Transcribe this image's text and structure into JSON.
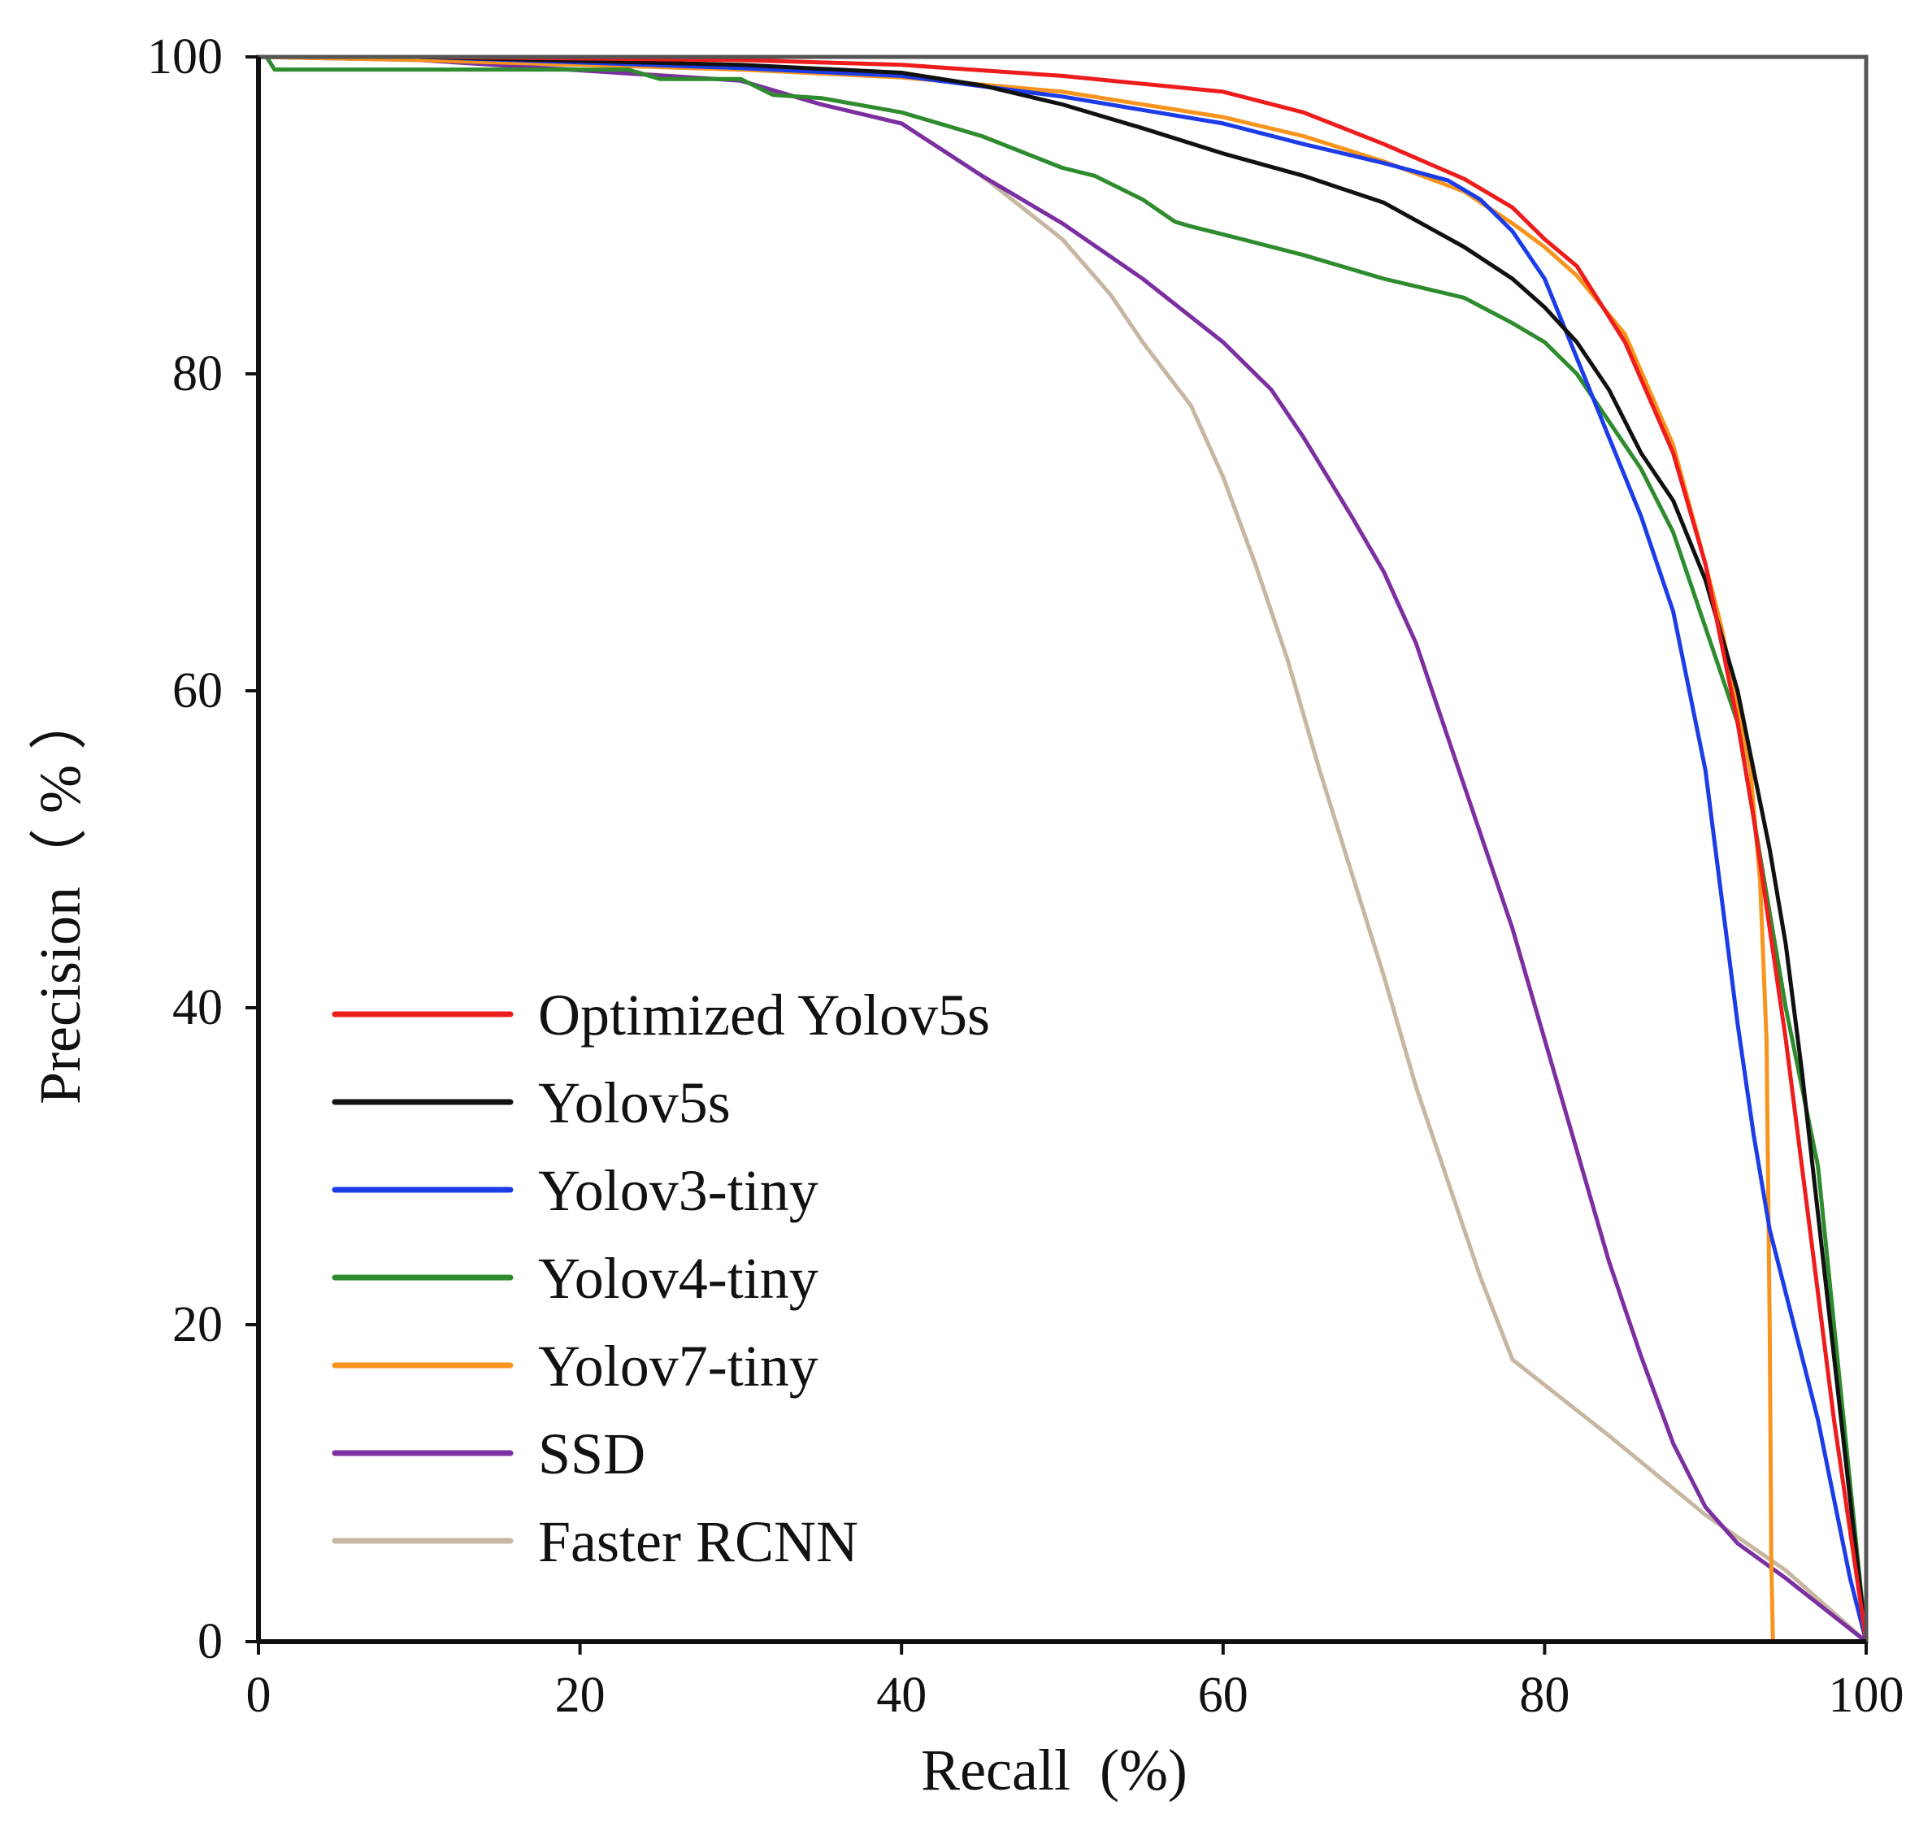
{
  "chart_data": {
    "type": "line",
    "title": "",
    "xlabel": "Recall  (%)",
    "ylabel": "Precision（ % ）",
    "xlim": [
      0,
      100
    ],
    "ylim": [
      0,
      100
    ],
    "x_ticks": [
      "0",
      "20",
      "40",
      "60",
      "80",
      "100"
    ],
    "y_ticks": [
      "0",
      "20",
      "40",
      "60",
      "80",
      "100"
    ],
    "grid": false,
    "legend_position": "lower-left",
    "series": [
      {
        "name": "Optimized Yolov5s",
        "color": "#ee1c1c",
        "x": [
          0,
          10,
          30,
          40,
          50,
          60,
          65,
          70,
          75,
          78,
          80,
          82,
          85,
          88,
          90,
          92,
          93,
          94,
          95,
          96,
          97,
          98,
          99,
          100
        ],
        "y": [
          100,
          100,
          99.8,
          99.5,
          98.8,
          97.8,
          96.5,
          94.5,
          92.3,
          90.5,
          88.5,
          86.8,
          82,
          75,
          68,
          58,
          52,
          45,
          38,
          30,
          22,
          14,
          7,
          0
        ]
      },
      {
        "name": "Yolov5s",
        "color": "#111111",
        "x": [
          0,
          10,
          30,
          40,
          45,
          50,
          55,
          60,
          65,
          70,
          75,
          78,
          80,
          82,
          84,
          86,
          88,
          90,
          92,
          93,
          94,
          95,
          96,
          97,
          98,
          99,
          100
        ],
        "y": [
          100,
          100,
          99.5,
          99,
          98.2,
          97,
          95.5,
          93.9,
          92.5,
          90.8,
          88,
          86,
          84.2,
          82,
          79,
          75,
          72,
          67,
          60,
          55,
          50,
          44,
          36,
          27,
          18,
          9,
          0
        ]
      },
      {
        "name": "Yolov3-tiny",
        "color": "#1c3ce8",
        "x": [
          0,
          10,
          30,
          40,
          50,
          60,
          65,
          70,
          74,
          76,
          78,
          80,
          82,
          84,
          86,
          88,
          89,
          90,
          91,
          92,
          93,
          94,
          95,
          96,
          97,
          98,
          99,
          100
        ],
        "y": [
          100,
          100,
          99.3,
          98.8,
          97.5,
          95.8,
          94.5,
          93.3,
          92.2,
          91,
          89,
          86,
          81,
          76,
          71,
          65,
          60,
          55,
          47,
          39,
          32,
          26,
          22,
          18,
          14,
          9,
          4,
          0
        ]
      },
      {
        "name": "Yolov4-tiny",
        "color": "#2e8b2e",
        "x": [
          0,
          0.5,
          1,
          10,
          23,
          25,
          30,
          32,
          35,
          40,
          45,
          50,
          52,
          55,
          57,
          58,
          60,
          65,
          70,
          75,
          78,
          80,
          82,
          84,
          86,
          88,
          90,
          92,
          93,
          94,
          95,
          96,
          97,
          98,
          99,
          100
        ],
        "y": [
          100,
          100,
          99.2,
          99.2,
          99.2,
          98.6,
          98.6,
          97.6,
          97.4,
          96.5,
          95,
          93,
          92.5,
          91,
          89.6,
          89.3,
          88.8,
          87.5,
          86,
          84.8,
          83.2,
          82,
          80,
          77,
          74,
          70,
          64,
          58,
          52,
          46,
          40,
          35,
          30,
          20,
          10,
          0
        ]
      },
      {
        "name": "Yolov7-tiny",
        "color": "#f7941d",
        "x": [
          0,
          10,
          30,
          40,
          50,
          60,
          65,
          70,
          75,
          78,
          80,
          82,
          85,
          88,
          90,
          91,
          92,
          92.8,
          93.4,
          93.8,
          94,
          94.1,
          94.2,
          94.3,
          100
        ],
        "y": [
          100,
          99.8,
          99.2,
          98.7,
          97.8,
          96.2,
          95,
          93.4,
          91.5,
          89.5,
          88,
          86.2,
          82.5,
          75.5,
          68,
          64,
          59,
          55,
          48,
          38,
          20,
          5,
          0,
          0,
          0
        ]
      },
      {
        "name": "SSD",
        "color": "#7b2fa0",
        "x": [
          0,
          10,
          30,
          35,
          40,
          45,
          50,
          55,
          60,
          63,
          65,
          68,
          70,
          72,
          74,
          76,
          78,
          80,
          82,
          84,
          86,
          88,
          90,
          92,
          95,
          100
        ],
        "y": [
          100,
          99.8,
          98.5,
          97,
          95.8,
          92.5,
          89.5,
          86,
          82,
          79,
          76,
          71,
          67.5,
          63,
          57,
          51,
          45,
          38,
          31,
          24,
          18,
          12.5,
          8.5,
          6.2,
          4,
          0
        ]
      },
      {
        "name": "Faster RCNN",
        "color": "#c8b7a0",
        "x": [
          0,
          10,
          30,
          35,
          40,
          45,
          50,
          53,
          55,
          58,
          60,
          62,
          64,
          66,
          68,
          70,
          72,
          74,
          76,
          78,
          84,
          90,
          95,
          100
        ],
        "y": [
          100,
          99.9,
          98.5,
          97,
          95.8,
          92.5,
          88.5,
          85,
          82,
          78,
          73.5,
          68,
          62,
          55,
          48.5,
          42,
          35,
          29,
          23,
          17.8,
          13,
          8,
          4.5,
          0
        ]
      }
    ]
  }
}
